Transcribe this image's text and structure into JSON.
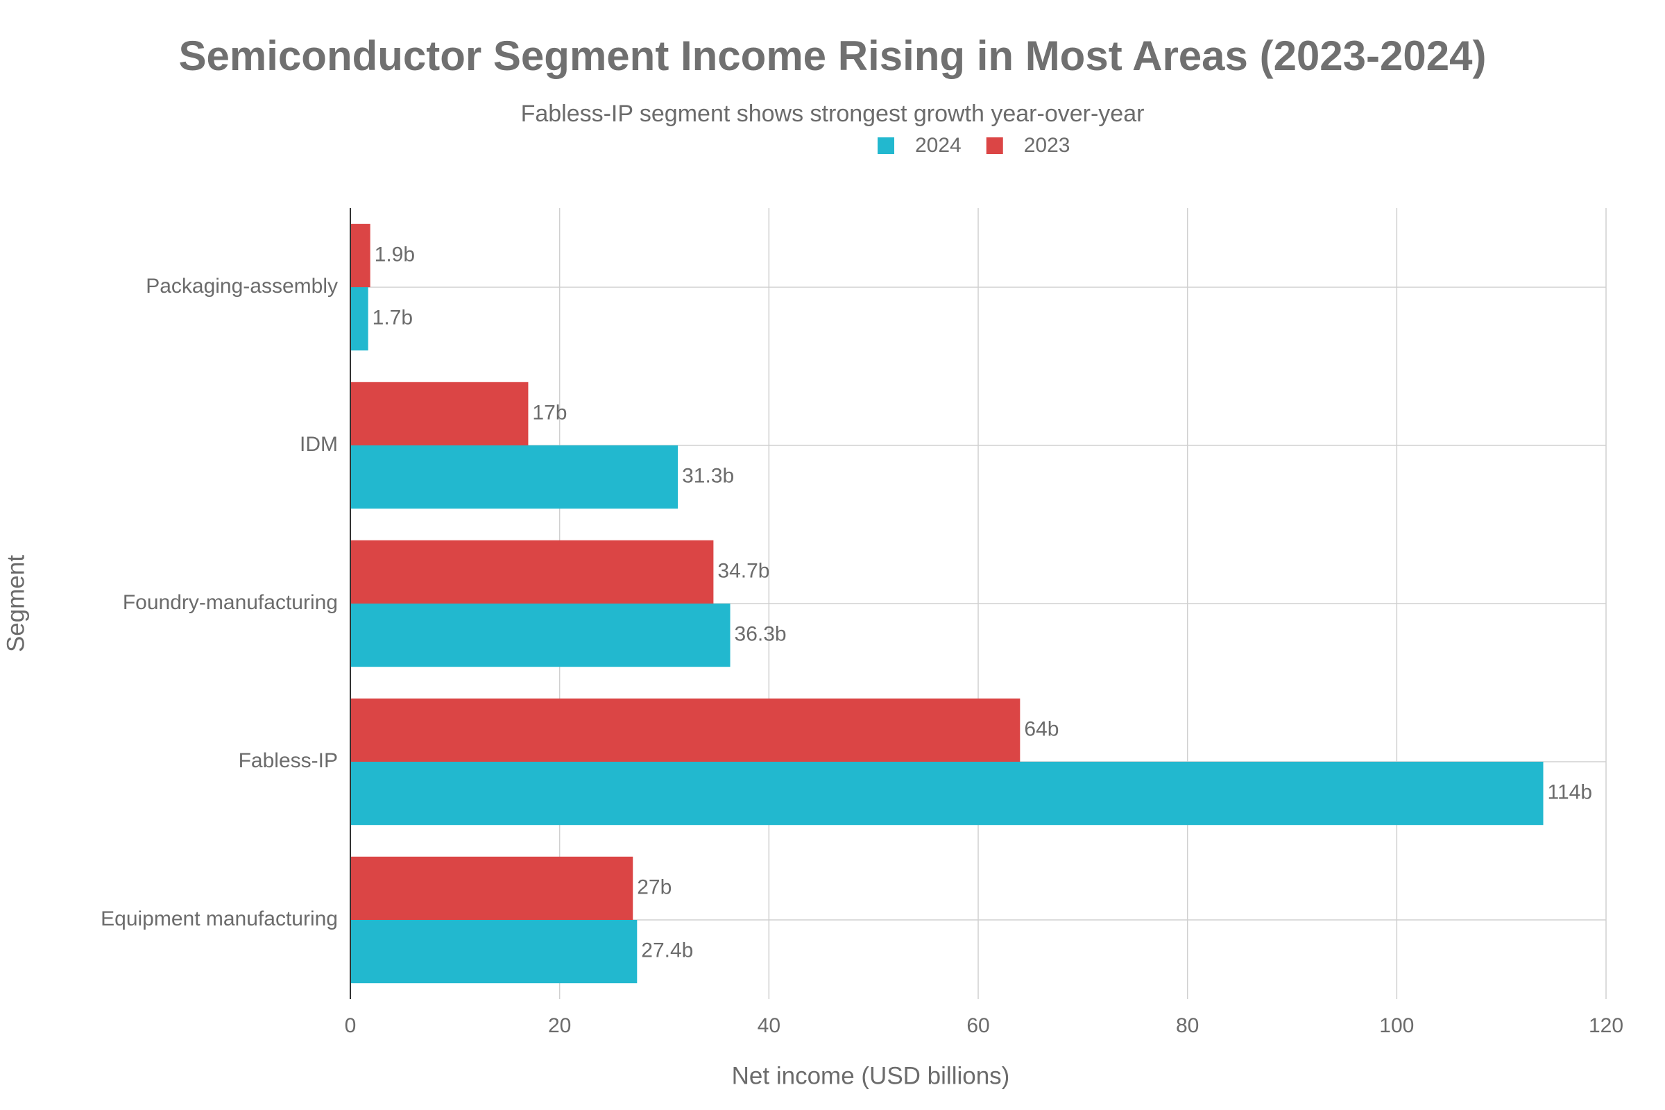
{
  "chart_data": {
    "type": "hbar",
    "title": "Semiconductor Segment Income Rising in Most Areas (2023-2024)",
    "subtitle": "Fabless-IP segment shows strongest growth year-over-year",
    "x_label": "Net income (USD billions)",
    "y_label": "Segment",
    "categories": [
      "Packaging-assembly",
      "IDM",
      "Foundry-manufacturing",
      "Fabless-IP",
      "Equipment manufacturing"
    ],
    "series": [
      {
        "name": "2024",
        "color": "#22b8cf",
        "values": [
          1.7,
          31.3,
          36.3,
          114,
          27.4
        ],
        "value_labels": [
          "1.7b",
          "31.3b",
          "36.3b",
          "114b",
          "27.4b"
        ]
      },
      {
        "name": "2023",
        "color": "#db4545",
        "values": [
          1.9,
          17,
          34.7,
          64,
          27
        ],
        "value_labels": [
          "1.9b",
          "17b",
          "34.7b",
          "64b",
          "27b"
        ]
      }
    ],
    "xlim": [
      0,
      120
    ],
    "xticks": [
      0,
      20,
      40,
      60,
      80,
      100,
      120
    ],
    "grid": true,
    "legend": "top"
  }
}
